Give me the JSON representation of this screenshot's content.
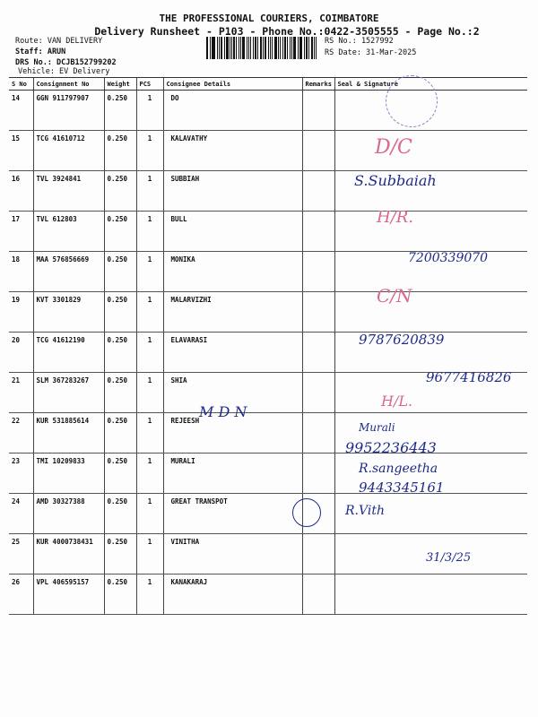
{
  "header": {
    "company": "THE PROFESSIONAL COURIERS, COIMBATORE",
    "subtitle": "Delivery Runsheet - P103 - Phone No.:0422-3505555 - Page No.:2",
    "route": "Route: VAN DELIVERY",
    "staff": "Staff: ARUN",
    "drs": "DRS No.: DCJB152799202",
    "vehicle": "Vehicle: EV Delivery",
    "rs_no": "RS No.: 1527992",
    "rs_date": "RS Date: 31-Mar-2025"
  },
  "columns": [
    "S No",
    "Consignment No",
    "Weight",
    "PCS",
    "Consignee Details",
    "Remarks",
    "Seal & Signature"
  ],
  "rows": [
    {
      "sno": "14",
      "cno": "GGN 911797907",
      "weight": "0.250",
      "pcs": "1",
      "name": "DO"
    },
    {
      "sno": "15",
      "cno": "TCG 41610712",
      "weight": "0.250",
      "pcs": "1",
      "name": "KALAVATHY"
    },
    {
      "sno": "16",
      "cno": "TVL 3924841",
      "weight": "0.250",
      "pcs": "1",
      "name": "SUBBIAH"
    },
    {
      "sno": "17",
      "cno": "TVL 612803",
      "weight": "0.250",
      "pcs": "1",
      "name": "BULL"
    },
    {
      "sno": "18",
      "cno": "MAA 576856669",
      "weight": "0.250",
      "pcs": "1",
      "name": "MONIKA"
    },
    {
      "sno": "19",
      "cno": "KVT 3301829",
      "weight": "0.250",
      "pcs": "1",
      "name": "MALARVIZHI"
    },
    {
      "sno": "20",
      "cno": "TCG 41612190",
      "weight": "0.250",
      "pcs": "1",
      "name": "ELAVARASI"
    },
    {
      "sno": "21",
      "cno": "SLM 367283267",
      "weight": "0.250",
      "pcs": "1",
      "name": "SHIA"
    },
    {
      "sno": "22",
      "cno": "KUR 531885614",
      "weight": "0.250",
      "pcs": "1",
      "name": "REJEESH"
    },
    {
      "sno": "23",
      "cno": "TMI 10209833",
      "weight": "0.250",
      "pcs": "1",
      "name": "MURALI"
    },
    {
      "sno": "24",
      "cno": "AMD 30327388",
      "weight": "0.250",
      "pcs": "1",
      "name": "GREAT TRANSPOT"
    },
    {
      "sno": "25",
      "cno": "KUR 4000738431",
      "weight": "0.250",
      "pcs": "1",
      "name": "VINITHA"
    },
    {
      "sno": "26",
      "cno": "VPL 406595157",
      "weight": "0.250",
      "pcs": "1",
      "name": "KANAKARAJ"
    }
  ],
  "handwriting": {
    "d_c": "D/C",
    "s_sign": "S.Subbaiah",
    "h_r": "H/R.",
    "phone1": "7200339070",
    "c_n": "C/N",
    "phone2": "9787620839",
    "phone3": "9677416826",
    "h_l": "H/L.",
    "mdn": "M D N",
    "murali": "Murali",
    "phone4": "9952236443",
    "sangeetha": "R.sangeetha",
    "phone5": "9443345161",
    "vinitha": "R.Vith",
    "date": "31/3/25"
  }
}
